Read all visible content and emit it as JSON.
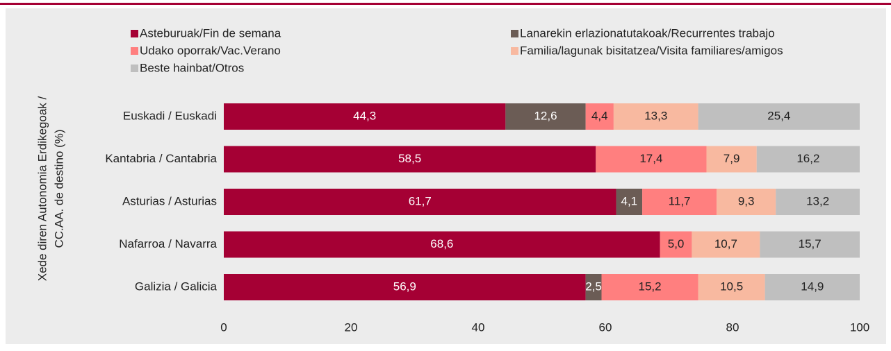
{
  "chart_data": {
    "type": "stacked_bar_horizontal",
    "y_label": [
      "Xede diren Autonomia Erdikegoak /",
      "CC.AA. de destino (%)"
    ],
    "categories": [
      "Euskadi / Euskadi",
      "Kantabria / Cantabria",
      "Asturias / Asturias",
      "Nafarroa / Navarra",
      "Galizia / Galicia"
    ],
    "series": [
      {
        "name": "Asteburuak/Fin de semana",
        "color": "#a50034",
        "label_color": "#ffffff",
        "values": [
          44.3,
          58.5,
          61.7,
          68.6,
          56.9
        ],
        "value_labels": [
          "44,3",
          "58,5",
          "61,7",
          "68,6",
          "56,9"
        ]
      },
      {
        "name": "Lanarekin erlazionatutakoak/Recurrentes trabajo",
        "color": "#6b5c55",
        "label_color": "#ffffff",
        "values": [
          12.6,
          null,
          4.1,
          null,
          2.5
        ],
        "value_labels": [
          "12,6",
          null,
          "4,1",
          null,
          "2,5"
        ]
      },
      {
        "name": "Udako oporrak/Vac.Verano",
        "color": "#ff7f7f",
        "label_color": "#222222",
        "values": [
          4.4,
          17.4,
          11.7,
          5.0,
          15.2
        ],
        "value_labels": [
          "4,4",
          "17,4",
          "11,7",
          "5,0",
          "15,2"
        ]
      },
      {
        "name": "Familia/lagunak bisitatzea/Visita familiares/amigos",
        "color": "#f8b9a0",
        "label_color": "#222222",
        "values": [
          13.3,
          7.9,
          9.3,
          10.7,
          10.5
        ],
        "value_labels": [
          "13,3",
          "7,9",
          "9,3",
          "10,7",
          "10,5"
        ]
      },
      {
        "name": "Beste hainbat/Otros",
        "color": "#bfbfbf",
        "label_color": "#222222",
        "values": [
          25.4,
          16.2,
          13.2,
          15.7,
          14.9
        ],
        "value_labels": [
          "25,4",
          "16,2",
          "13,2",
          "15,7",
          "14,9"
        ]
      }
    ],
    "xlim": [
      0,
      100
    ],
    "xticks": [
      0,
      20,
      40,
      60,
      80,
      100
    ]
  }
}
